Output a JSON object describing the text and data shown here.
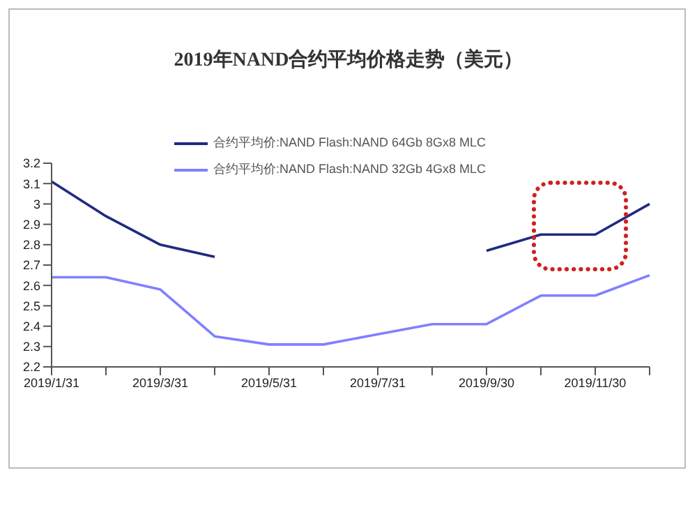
{
  "chart_data": {
    "type": "line",
    "title": "2019年NAND合约平均价格走势（美元）",
    "categories": [
      "2019/1/31",
      null,
      "2019/3/31",
      null,
      "2019/5/31",
      null,
      "2019/7/31",
      null,
      "2019/9/30",
      null,
      "2019/11/30",
      null
    ],
    "series": [
      {
        "name": "合约平均价:NAND Flash:NAND 64Gb 8Gx8 MLC",
        "color": "#1f2a80",
        "values": [
          3.11,
          2.94,
          2.8,
          2.74,
          null,
          null,
          null,
          null,
          2.77,
          2.85,
          2.85,
          3.0
        ]
      },
      {
        "name": "合约平均价:NAND Flash:NAND 32Gb 4Gx8 MLC",
        "color": "#8080ff",
        "values": [
          2.64,
          2.64,
          2.58,
          2.35,
          2.31,
          2.31,
          2.36,
          2.41,
          2.41,
          2.55,
          2.55,
          2.65
        ]
      }
    ],
    "ylim": [
      2.2,
      3.2
    ],
    "yticks": [
      2.2,
      2.3,
      2.4,
      2.5,
      2.6,
      2.7,
      2.8,
      2.9,
      3,
      3.1,
      3.2
    ],
    "legend": "top",
    "marker": "none",
    "line_style": "solid"
  }
}
